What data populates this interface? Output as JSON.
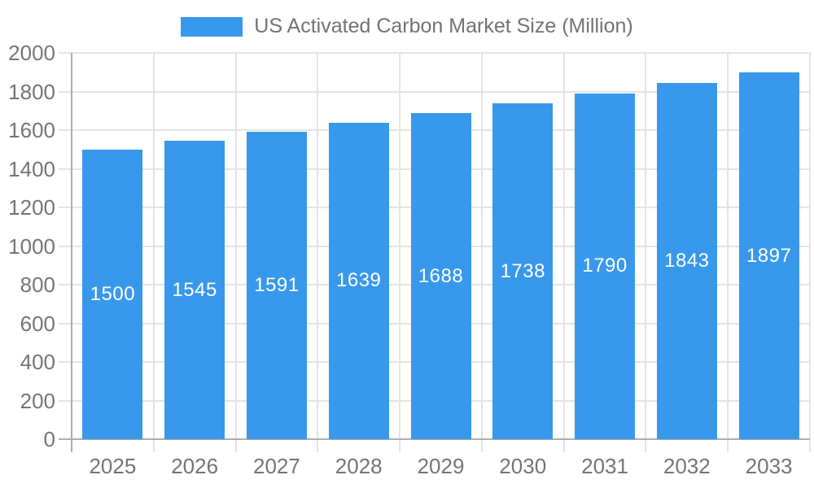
{
  "colors": {
    "bar": "#3899EC",
    "grid": "#e4e4e4",
    "axis": "#aeaeae",
    "tick_text": "#757575",
    "legend_text": "#737373",
    "bar_label": "#ffffff",
    "background": "#ffffff"
  },
  "legend": {
    "label": "US Activated Carbon Market Size (Million)"
  },
  "chart_data": {
    "type": "bar",
    "title": "US Activated Carbon Market Size (Million)",
    "categories": [
      "2025",
      "2026",
      "2027",
      "2028",
      "2029",
      "2030",
      "2031",
      "2032",
      "2033"
    ],
    "values": [
      1500,
      1545,
      1591,
      1639,
      1688,
      1738,
      1790,
      1843,
      1897
    ],
    "bar_value_labels": [
      "1500",
      "1545",
      "1591",
      "1639",
      "1688",
      "1738",
      "1790",
      "1843",
      "1897"
    ],
    "xlabel": "",
    "ylabel": "",
    "ylim": [
      0,
      2000
    ],
    "yticks": [
      0,
      200,
      400,
      600,
      800,
      1000,
      1200,
      1400,
      1600,
      1800,
      2000
    ],
    "grid": true,
    "legend_position": "top"
  }
}
